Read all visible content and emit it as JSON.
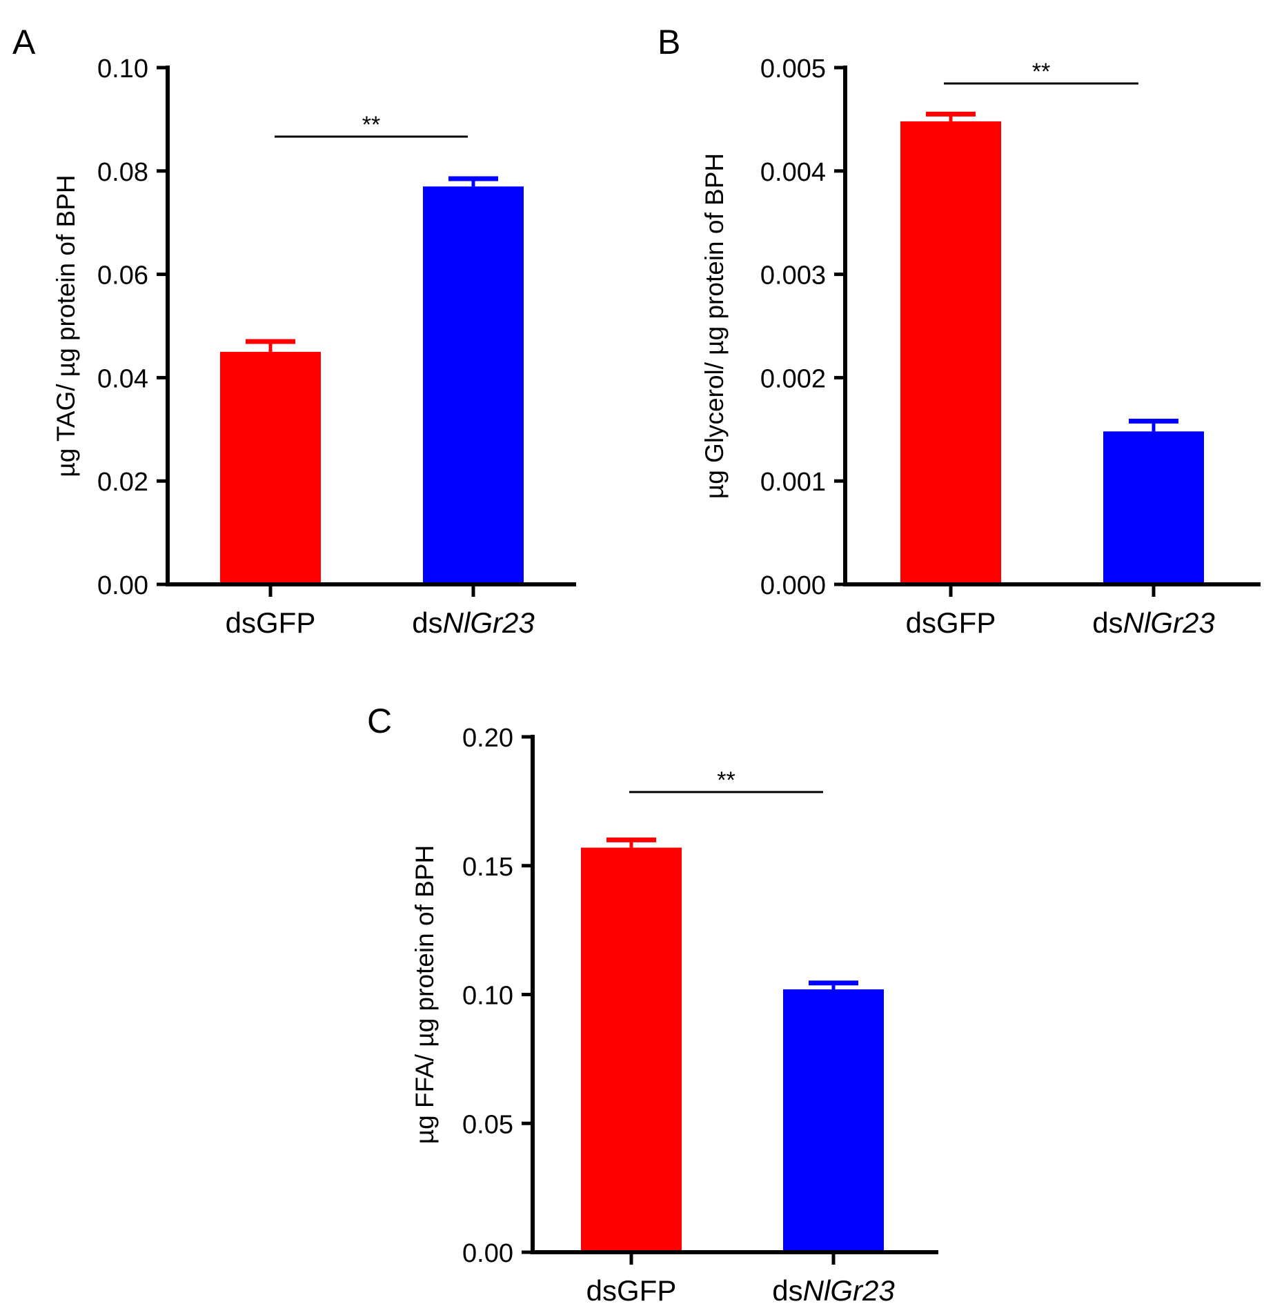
{
  "colors": {
    "control": "#ff0000",
    "treatment": "#0000ff",
    "axis": "#000000"
  },
  "chart_data": [
    {
      "panel": "A",
      "type": "bar",
      "ylabel": "µg TAG/ µg protein of BPH",
      "ylim": [
        0,
        0.1
      ],
      "yticks": [
        "0.00",
        "0.02",
        "0.04",
        "0.06",
        "0.08",
        "0.10"
      ],
      "categories": [
        {
          "prefix": "ds",
          "name": "GFP",
          "italic": false
        },
        {
          "prefix": "ds",
          "name": "NlGr23",
          "italic": true
        }
      ],
      "values": [
        0.045,
        0.077
      ],
      "errors": [
        0.002,
        0.0015
      ],
      "significance": "**"
    },
    {
      "panel": "B",
      "type": "bar",
      "ylabel": "µg Glycerol/ µg protein of BPH",
      "ylim": [
        0,
        0.005
      ],
      "yticks": [
        "0.000",
        "0.001",
        "0.002",
        "0.003",
        "0.004",
        "0.005"
      ],
      "categories": [
        {
          "prefix": "ds",
          "name": "GFP",
          "italic": false
        },
        {
          "prefix": "ds",
          "name": "NlGr23",
          "italic": true
        }
      ],
      "values": [
        0.00448,
        0.00148
      ],
      "errors": [
        7e-05,
        0.0001
      ],
      "significance": "**"
    },
    {
      "panel": "C",
      "type": "bar",
      "ylabel": "µg FFA/ µg protein of BPH",
      "ylim": [
        0,
        0.2
      ],
      "yticks": [
        "0.00",
        "0.05",
        "0.10",
        "0.15",
        "0.20"
      ],
      "categories": [
        {
          "prefix": "ds",
          "name": "GFP",
          "italic": false
        },
        {
          "prefix": "ds",
          "name": "NlGr23",
          "italic": true
        }
      ],
      "values": [
        0.157,
        0.102
      ],
      "errors": [
        0.003,
        0.0025
      ],
      "significance": "**"
    }
  ]
}
